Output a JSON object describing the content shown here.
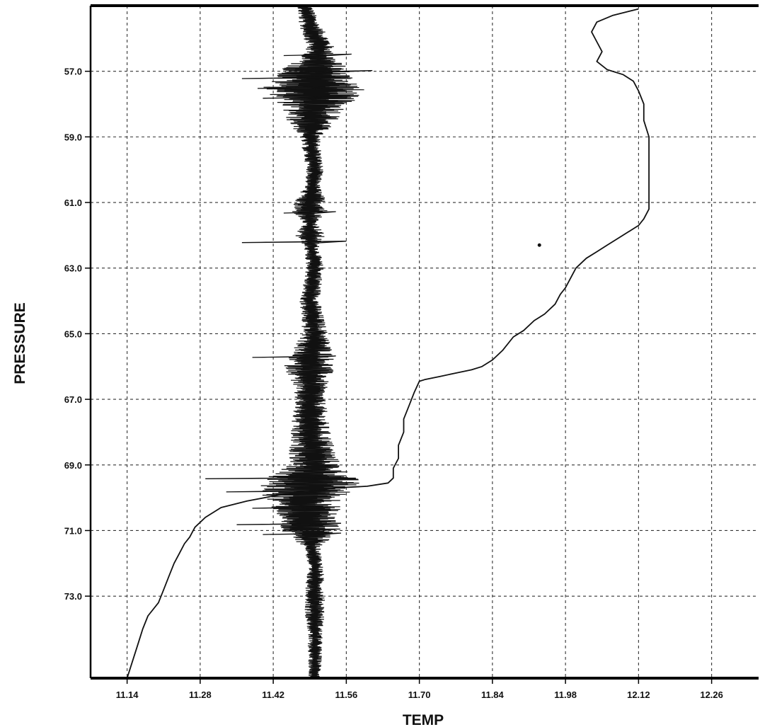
{
  "chart_data": {
    "type": "line",
    "title": "",
    "xlabel": "TEMP",
    "ylabel": "PRESSURE",
    "xlim": [
      11.07,
      12.35
    ],
    "ylim": [
      55.0,
      75.5
    ],
    "y_inverted": true,
    "grid": true,
    "x_ticks": [
      11.14,
      11.28,
      11.42,
      11.56,
      11.7,
      11.84,
      11.98,
      12.12,
      12.26
    ],
    "x_tick_labels": [
      "11.14",
      "11.28",
      "11.42",
      "11.56",
      "11.70",
      "11.84",
      "11.98",
      "12.12",
      "12.26"
    ],
    "y_ticks": [
      57.0,
      59.0,
      61.0,
      63.0,
      65.0,
      67.0,
      69.0,
      71.0,
      73.0
    ],
    "y_tick_labels": [
      "57.0",
      "59.0",
      "61.0",
      "63.0",
      "65.0",
      "67.0",
      "69.0",
      "71.0",
      "73.0"
    ],
    "series": [
      {
        "color": "#111111",
        "points": [
          [
            12.12,
            55.1
          ],
          [
            12.07,
            55.3
          ],
          [
            12.04,
            55.5
          ],
          [
            12.03,
            55.8
          ],
          [
            12.04,
            56.1
          ],
          [
            12.05,
            56.4
          ],
          [
            12.04,
            56.7
          ],
          [
            12.06,
            56.95
          ],
          [
            12.09,
            57.1
          ],
          [
            12.11,
            57.3
          ],
          [
            12.12,
            57.6
          ],
          [
            12.13,
            58.0
          ],
          [
            12.13,
            58.5
          ],
          [
            12.14,
            59.0
          ],
          [
            12.14,
            59.6
          ],
          [
            12.14,
            60.2
          ],
          [
            12.14,
            60.8
          ],
          [
            12.14,
            61.2
          ],
          [
            12.13,
            61.5
          ],
          [
            12.12,
            61.7
          ],
          [
            12.1,
            61.9
          ],
          [
            12.08,
            62.1
          ],
          [
            12.06,
            62.3
          ],
          [
            12.04,
            62.5
          ],
          [
            12.02,
            62.7
          ],
          [
            12.0,
            63.0
          ],
          [
            11.99,
            63.3
          ],
          [
            11.98,
            63.6
          ],
          [
            11.97,
            63.8
          ],
          [
            11.96,
            64.1
          ],
          [
            11.94,
            64.4
          ],
          [
            11.92,
            64.6
          ],
          [
            11.9,
            64.9
          ],
          [
            11.88,
            65.1
          ],
          [
            11.86,
            65.5
          ],
          [
            11.84,
            65.8
          ],
          [
            11.82,
            66.0
          ],
          [
            11.8,
            66.1
          ],
          [
            11.77,
            66.2
          ],
          [
            11.74,
            66.3
          ],
          [
            11.71,
            66.4
          ],
          [
            11.7,
            66.45
          ],
          [
            11.69,
            66.8
          ],
          [
            11.68,
            67.2
          ],
          [
            11.67,
            67.6
          ],
          [
            11.67,
            68.0
          ],
          [
            11.66,
            68.4
          ],
          [
            11.66,
            68.8
          ],
          [
            11.65,
            69.1
          ],
          [
            11.65,
            69.4
          ],
          [
            11.64,
            69.55
          ],
          [
            11.6,
            69.65
          ],
          [
            11.54,
            69.7
          ],
          [
            11.48,
            69.8
          ],
          [
            11.42,
            69.95
          ],
          [
            11.37,
            70.1
          ],
          [
            11.32,
            70.3
          ],
          [
            11.29,
            70.6
          ],
          [
            11.27,
            70.9
          ],
          [
            11.26,
            71.2
          ],
          [
            11.25,
            71.4
          ],
          [
            11.24,
            71.7
          ],
          [
            11.23,
            72.0
          ],
          [
            11.22,
            72.4
          ],
          [
            11.21,
            72.8
          ],
          [
            11.2,
            73.2
          ],
          [
            11.18,
            73.6
          ],
          [
            11.17,
            74.0
          ],
          [
            11.16,
            74.5
          ],
          [
            11.15,
            75.0
          ],
          [
            11.14,
            75.5
          ]
        ]
      },
      {
        "color": "#111111",
        "generated": "noise",
        "center_points": [
          [
            11.48,
            55.0
          ],
          [
            11.49,
            55.6
          ],
          [
            11.51,
            56.2
          ],
          [
            11.5,
            57.0
          ],
          [
            11.5,
            58.0
          ],
          [
            11.49,
            59.0
          ],
          [
            11.5,
            60.0
          ],
          [
            11.49,
            61.0
          ],
          [
            11.49,
            62.0
          ],
          [
            11.5,
            63.0
          ],
          [
            11.49,
            64.0
          ],
          [
            11.5,
            65.0
          ],
          [
            11.49,
            66.0
          ],
          [
            11.49,
            67.0
          ],
          [
            11.49,
            68.0
          ],
          [
            11.5,
            69.0
          ],
          [
            11.48,
            70.0
          ],
          [
            11.49,
            71.0
          ],
          [
            11.5,
            72.0
          ],
          [
            11.5,
            73.0
          ],
          [
            11.5,
            74.0
          ],
          [
            11.5,
            75.5
          ]
        ],
        "amplitude_envelope": [
          [
            55.0,
            0.015
          ],
          [
            56.5,
            0.03
          ],
          [
            57.0,
            0.07
          ],
          [
            57.5,
            0.1
          ],
          [
            58.0,
            0.07
          ],
          [
            58.5,
            0.05
          ],
          [
            59.0,
            0.02
          ],
          [
            60.5,
            0.015
          ],
          [
            61.2,
            0.04
          ],
          [
            61.6,
            0.015
          ],
          [
            62.0,
            0.03
          ],
          [
            62.3,
            0.015
          ],
          [
            64.0,
            0.02
          ],
          [
            65.0,
            0.025
          ],
          [
            65.5,
            0.04
          ],
          [
            66.0,
            0.05
          ],
          [
            66.5,
            0.035
          ],
          [
            67.0,
            0.03
          ],
          [
            68.0,
            0.04
          ],
          [
            69.0,
            0.05
          ],
          [
            69.5,
            0.1
          ],
          [
            70.0,
            0.08
          ],
          [
            70.5,
            0.06
          ],
          [
            71.0,
            0.06
          ],
          [
            71.5,
            0.015
          ],
          [
            73.5,
            0.02
          ],
          [
            74.0,
            0.015
          ],
          [
            75.5,
            0.012
          ]
        ],
        "spikes": [
          [
            56.5,
            11.44,
            11.57
          ],
          [
            57.0,
            11.47,
            11.61
          ],
          [
            57.2,
            11.36,
            11.55
          ],
          [
            57.5,
            11.39,
            11.52
          ],
          [
            57.8,
            11.4,
            11.53
          ],
          [
            61.3,
            11.44,
            11.54
          ],
          [
            62.2,
            11.36,
            11.56
          ],
          [
            65.7,
            11.38,
            11.54
          ],
          [
            69.4,
            11.29,
            11.55
          ],
          [
            69.8,
            11.33,
            11.52
          ],
          [
            70.3,
            11.38,
            11.53
          ],
          [
            70.8,
            11.35,
            11.55
          ],
          [
            71.1,
            11.4,
            11.55
          ]
        ]
      }
    ],
    "annotations": [
      {
        "kind": "dot",
        "x": 11.93,
        "y": 62.3
      }
    ]
  }
}
